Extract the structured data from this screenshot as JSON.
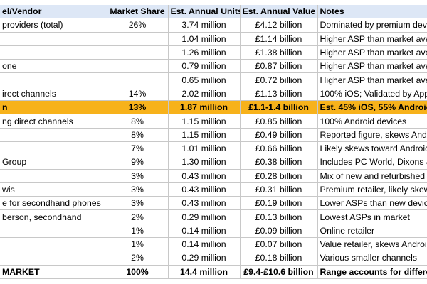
{
  "table": {
    "headers": [
      "el/Vendor",
      "Market Share",
      "Est. Annual Units",
      "Est. Annual Value",
      "Notes"
    ],
    "rows": [
      [
        "providers (total)",
        "26%",
        "3.74 million",
        "£4.12 billion",
        "Dominated by premium devi"
      ],
      [
        "",
        "",
        "1.04 million",
        "£1.14 billion",
        "Higher ASP than market aver"
      ],
      [
        "",
        "",
        "1.26 million",
        "£1.38 billion",
        "Higher ASP than market aver"
      ],
      [
        "one",
        "",
        "0.79 million",
        "£0.87 billion",
        "Higher ASP than market aver"
      ],
      [
        "",
        "",
        "0.65 million",
        "£0.72 billion",
        "Higher ASP than market aver"
      ],
      [
        "irect channels",
        "14%",
        "2.02 million",
        "£1.13 billion",
        "100% iOS; Validated by Appl"
      ],
      [
        "n",
        "13%",
        "1.87 million",
        "£1.1-1.4 billion",
        "Est. 45% iOS, 55% Android"
      ],
      [
        "ng direct channels",
        "8%",
        "1.15 million",
        "£0.85 billion",
        "100% Android devices"
      ],
      [
        "",
        "8%",
        "1.15 million",
        "£0.49 billion",
        "Reported figure, skews Andr"
      ],
      [
        "",
        "7%",
        "1.01 million",
        "£0.66 billion",
        "Likely skews toward Android"
      ],
      [
        "Group",
        "9%",
        "1.30 million",
        "£0.38 billion",
        "Includes PC World, Dixons &"
      ],
      [
        "",
        "3%",
        "0.43 million",
        "£0.28 billion",
        "Mix of new and refurbished"
      ],
      [
        "wis",
        "3%",
        "0.43 million",
        "£0.31 billion",
        "Premium retailer, likely skew"
      ],
      [
        "e for secondhand phones",
        "3%",
        "0.43 million",
        "£0.19 billion",
        "Lower ASPs than new device"
      ],
      [
        "berson, secondhand",
        "2%",
        "0.29 million",
        "£0.13 billion",
        "Lowest ASPs in market"
      ],
      [
        "",
        "1%",
        "0.14 million",
        "£0.09 billion",
        "Online retailer"
      ],
      [
        "",
        "1%",
        "0.14 million",
        "£0.07 billion",
        "Value retailer, skews Androi"
      ],
      [
        "",
        "2%",
        "0.29 million",
        "£0.18 billion",
        "Various smaller channels"
      ]
    ],
    "total": [
      "MARKET",
      "100%",
      "14.4 million",
      "£9.4-£10.6 billion",
      "Range accounts for differen"
    ],
    "highlight_row_index": 6,
    "highlight_color": "#f7b21b",
    "header_color": "#dde7f6"
  }
}
